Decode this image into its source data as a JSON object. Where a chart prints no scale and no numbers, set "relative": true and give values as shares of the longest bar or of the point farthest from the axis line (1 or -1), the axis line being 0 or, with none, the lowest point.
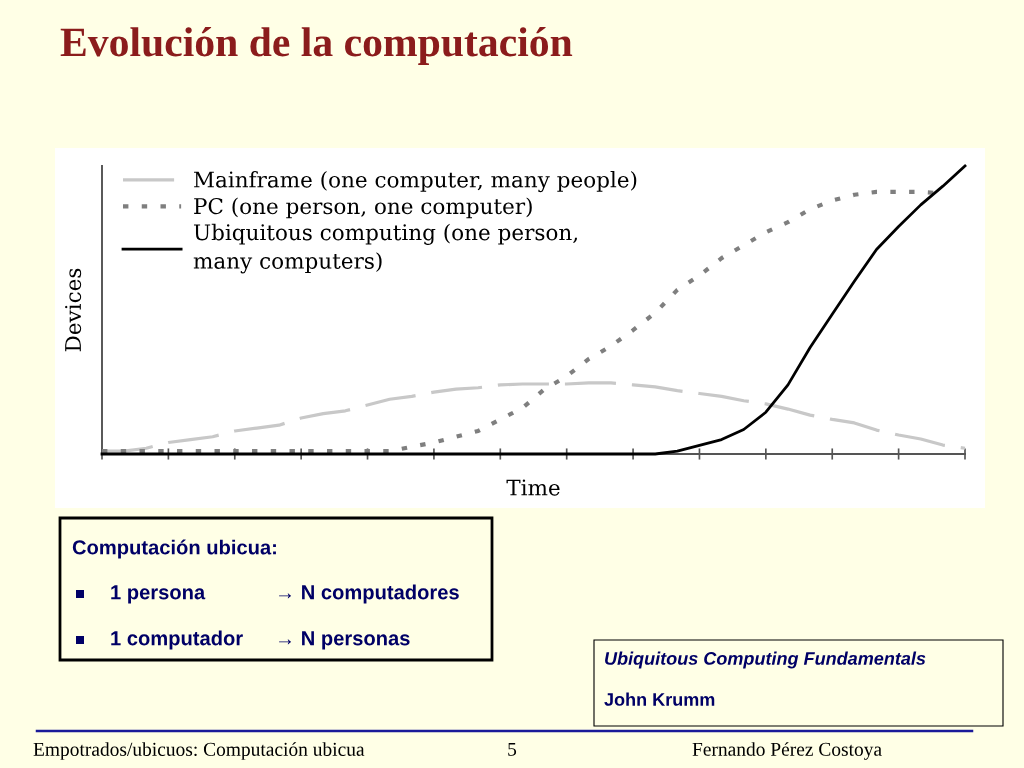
{
  "chart_data": {
    "type": "line",
    "title": "Evolución de la computación",
    "xlabel": "Time",
    "ylabel": "Devices",
    "relative": true,
    "categories": [
      null,
      null,
      null,
      null,
      null,
      null,
      null,
      null,
      null,
      null,
      null,
      null,
      null,
      null,
      null,
      null,
      null,
      null,
      null,
      null,
      null,
      null,
      null,
      null,
      null,
      null,
      null,
      null,
      null,
      null,
      null,
      null,
      null,
      null,
      null,
      null,
      null,
      null,
      null,
      null
    ],
    "series": [
      {
        "name": "Mainframe (one computer, many people)",
        "color": "#c8c8c8",
        "line_style": "dashed",
        "values": [
          0.01,
          0.01,
          0.02,
          0.04,
          0.05,
          0.06,
          0.08,
          0.09,
          0.1,
          0.125,
          0.14,
          0.15,
          0.17,
          0.19,
          0.2,
          0.215,
          0.225,
          0.23,
          0.24,
          0.243,
          0.243,
          0.243,
          0.247,
          0.247,
          0.24,
          0.233,
          0.22,
          0.21,
          0.2,
          0.185,
          0.174,
          0.156,
          0.135,
          0.12,
          0.108,
          0.083,
          0.066,
          0.052,
          0.031,
          0.02
        ]
      },
      {
        "name": "PC (one person, one computer)",
        "color": "#7f7f7f",
        "line_style": "dotted",
        "values": [
          0.01,
          0.01,
          0.01,
          0.01,
          0.01,
          0.01,
          0.01,
          0.01,
          0.01,
          0.01,
          0.01,
          0.01,
          0.01,
          0.01,
          0.025,
          0.04,
          0.06,
          0.08,
          0.12,
          0.16,
          0.225,
          0.27,
          0.33,
          0.375,
          0.43,
          0.49,
          0.57,
          0.62,
          0.68,
          0.725,
          0.77,
          0.805,
          0.85,
          0.88,
          0.9,
          0.91,
          0.91,
          0.91,
          0.905,
          null
        ]
      },
      {
        "name": "Ubiquitous computing (one person,\nmany computers)",
        "color": "#000000",
        "line_style": "solid",
        "values": [
          0,
          0,
          0,
          0,
          0,
          0,
          0,
          0,
          0,
          0,
          0,
          0,
          0,
          0,
          0,
          0,
          0,
          0,
          0,
          0,
          0,
          0,
          0,
          0,
          0,
          0,
          0.01,
          0.03,
          0.05,
          0.085,
          0.145,
          0.24,
          0.37,
          0.485,
          0.6,
          0.71,
          0.79,
          0.865,
          0.93,
          1
        ]
      }
    ],
    "legend": "top left",
    "tick_labels": false,
    "annotations": [
      "Computación ubicua:",
      "1 persona",
      "→ N computadores",
      "1 computador",
      "→ N personas",
      "Ubiquitous Computing Fundamentals",
      "John Krumm",
      "Empotrados/ubicuos: Computación ubicua",
      "5",
      "Fernando Pérez Costoya"
    ]
  }
}
